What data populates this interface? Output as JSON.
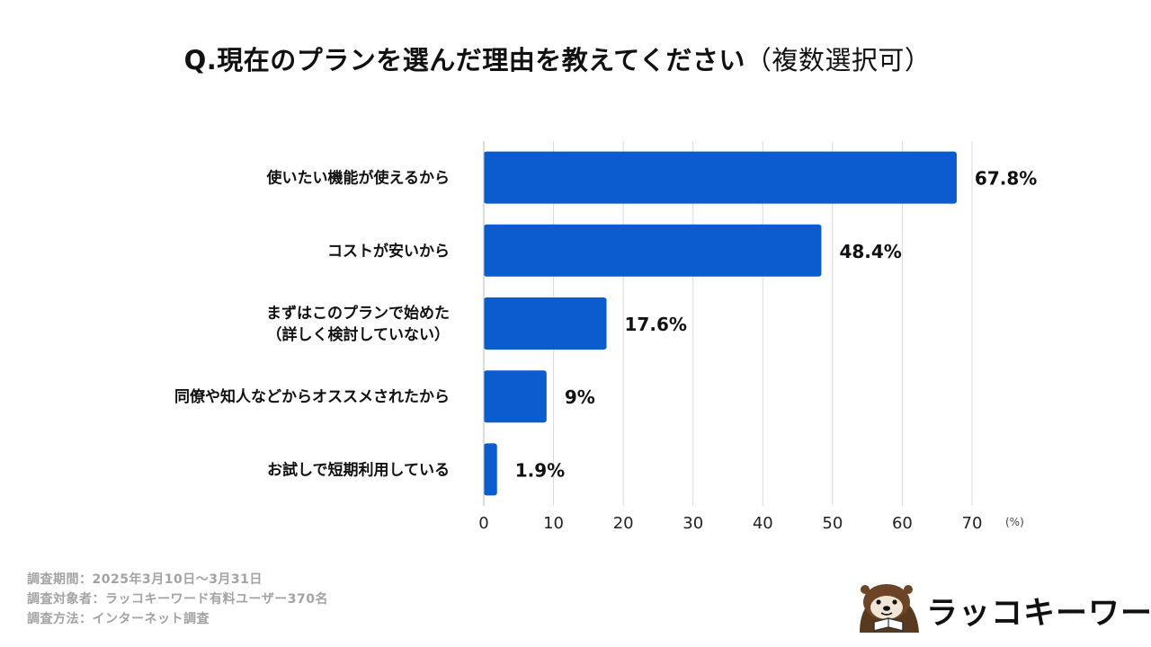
{
  "header": {
    "title_main": "Q.現在のプランを選んだ理由を教えてください",
    "title_paren": "（複数選択可）"
  },
  "chart_data": {
    "type": "bar",
    "orientation": "horizontal",
    "categories": [
      [
        "使いたい機能が使えるから"
      ],
      [
        "コストが安いから"
      ],
      [
        "まずはこのプランで始めた",
        "（詳しく検討していない）"
      ],
      [
        "同僚や知人などからオススメされたから"
      ],
      [
        "お試しで短期利用している"
      ]
    ],
    "values": [
      67.8,
      48.4,
      17.6,
      9,
      1.9
    ],
    "value_labels": [
      "67.8%",
      "48.4%",
      "17.6%",
      "9%",
      "1.9%"
    ],
    "xlim": [
      0,
      70
    ],
    "xticks": [
      0,
      10,
      20,
      30,
      40,
      50,
      60,
      70
    ],
    "unit_label": "(%)",
    "grid": true,
    "bar_color": "#0a5ccf"
  },
  "footer": {
    "lines": [
      "調査期間：2025年3月10日～3月31日",
      "調査対象者：ラッコキーワード有料ユーザー370名",
      "調査方法：インターネット調査"
    ]
  },
  "logo": {
    "text": "ラッコキーワード",
    "icon": "sea-otter-icon"
  }
}
